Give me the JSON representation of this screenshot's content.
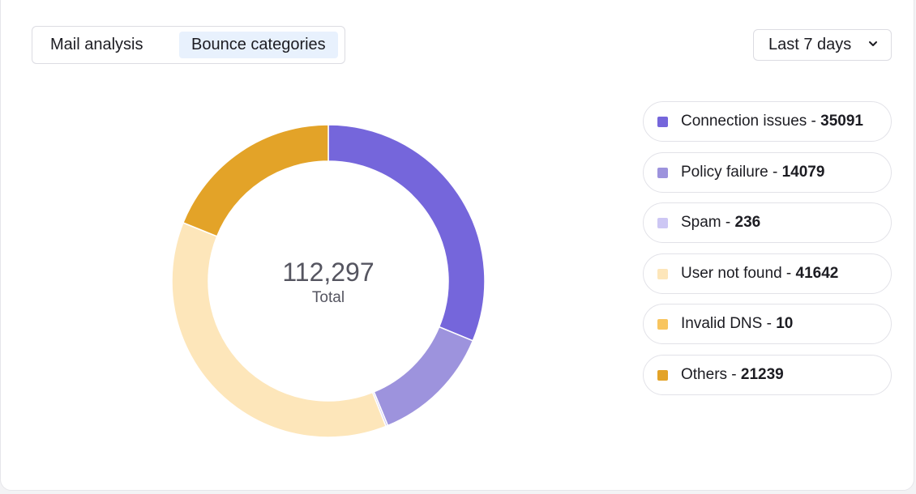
{
  "tabs": [
    {
      "label": "Mail analysis",
      "active": false
    },
    {
      "label": "Bounce categories",
      "active": true
    }
  ],
  "range_select": {
    "value": "Last 7 days",
    "icon": "chevron-down-icon"
  },
  "center": {
    "total": "112,297",
    "label": "Total"
  },
  "colors": {
    "tab_active_bg": "#e8f1fd"
  },
  "chart_data": {
    "type": "pie",
    "variant": "donut",
    "title": "",
    "legend_position": "right",
    "categories": [
      "Connection issues",
      "Policy failure",
      "Spam",
      "User not found",
      "Invalid DNS",
      "Others"
    ],
    "values": [
      35091,
      14079,
      236,
      41642,
      10,
      21239
    ],
    "colors": [
      "#7566db",
      "#9d93dd",
      "#cdc7f4",
      "#fde6ba",
      "#f8c55f",
      "#e3a328"
    ],
    "total": 112297,
    "start_angle_deg": 0,
    "direction": "clockwise"
  }
}
